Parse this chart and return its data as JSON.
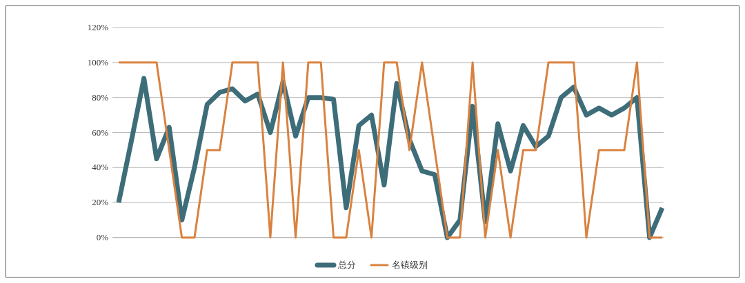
{
  "chart_data": {
    "type": "line",
    "categories": [
      null,
      null,
      null,
      null,
      null,
      null,
      null,
      null,
      null,
      null,
      null,
      null,
      null,
      null,
      null,
      null,
      null,
      null,
      null,
      null,
      null,
      null,
      null,
      null,
      null,
      null,
      null,
      null,
      null,
      null,
      null,
      null,
      null,
      null,
      null,
      null,
      null,
      null,
      null,
      null,
      null,
      null,
      null,
      null
    ],
    "series": [
      {
        "name": "总分",
        "color": "#3e6d7a",
        "values": [
          20,
          55,
          91,
          45,
          63,
          10,
          40,
          76,
          83,
          85,
          78,
          82,
          60,
          89,
          58,
          80,
          80,
          79,
          17,
          64,
          70,
          30,
          88,
          56,
          38,
          36,
          0,
          10,
          75,
          9,
          65,
          38,
          64,
          52,
          58,
          80,
          86,
          70,
          74,
          70,
          74,
          80,
          0,
          17
        ]
      },
      {
        "name": "名镇级别",
        "color": "#d9823f",
        "values": [
          100,
          100,
          100,
          100,
          50,
          0,
          0,
          50,
          50,
          100,
          100,
          100,
          0,
          100,
          0,
          100,
          100,
          0,
          0,
          50,
          0,
          100,
          100,
          50,
          100,
          50,
          0,
          0,
          100,
          0,
          50,
          0,
          50,
          50,
          100,
          100,
          100,
          0,
          50,
          50,
          50,
          100,
          0,
          0
        ]
      }
    ],
    "ylim": [
      0,
      120
    ],
    "yticks": [
      {
        "value": 0,
        "label": "0%"
      },
      {
        "value": 20,
        "label": "20%"
      },
      {
        "value": 40,
        "label": "40%"
      },
      {
        "value": 60,
        "label": "60%"
      },
      {
        "value": 80,
        "label": "80%"
      },
      {
        "value": 100,
        "label": "100%"
      },
      {
        "value": 120,
        "label": "120%"
      }
    ],
    "grid": "y",
    "legend": "bottom",
    "line_style": "solid"
  }
}
